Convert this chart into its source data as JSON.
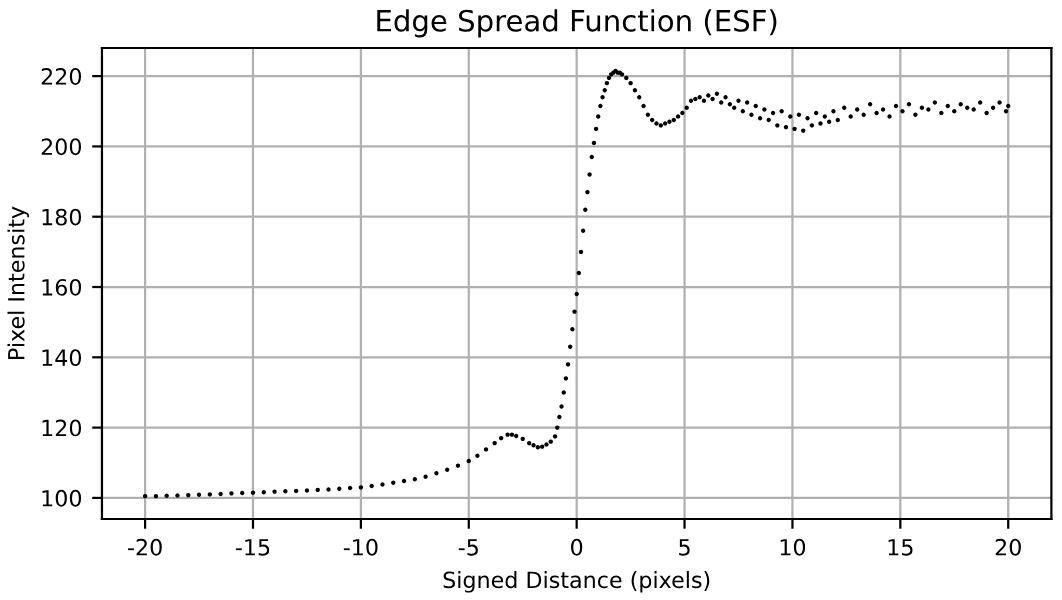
{
  "chart_data": {
    "type": "scatter",
    "title": "Edge Spread Function (ESF)",
    "xlabel": "Signed Distance (pixels)",
    "ylabel": "Pixel Intensity",
    "xlim": [
      -22,
      22
    ],
    "ylim": [
      94,
      228
    ],
    "xticks": [
      -20,
      -15,
      -10,
      -5,
      0,
      5,
      10,
      15,
      20
    ],
    "yticks": [
      100,
      120,
      140,
      160,
      180,
      200,
      220
    ],
    "grid": true,
    "marker": "circle",
    "series": [
      {
        "color": "#000000",
        "x": [
          -20,
          -19.5,
          -19,
          -18.5,
          -18,
          -17.5,
          -17,
          -16.5,
          -16,
          -15.5,
          -15,
          -14.5,
          -14,
          -13.5,
          -13,
          -12.5,
          -12,
          -11.5,
          -11,
          -10.5,
          -10,
          -9.5,
          -9,
          -8.5,
          -8,
          -7.5,
          -7,
          -6.5,
          -6,
          -5.5,
          -5,
          -4.6,
          -4.2,
          -3.8,
          -3.5,
          -3.2,
          -3.0,
          -2.8,
          -2.5,
          -2.2,
          -2.0,
          -1.8,
          -1.6,
          -1.4,
          -1.2,
          -1.0,
          -0.9,
          -0.8,
          -0.7,
          -0.6,
          -0.5,
          -0.4,
          -0.3,
          -0.2,
          -0.1,
          0.0,
          0.1,
          0.2,
          0.3,
          0.4,
          0.5,
          0.6,
          0.7,
          0.8,
          0.9,
          1.0,
          1.1,
          1.2,
          1.3,
          1.4,
          1.5,
          1.6,
          1.7,
          1.8,
          1.9,
          2.0,
          2.1,
          2.3,
          2.5,
          2.7,
          2.9,
          3.1,
          3.3,
          3.5,
          3.7,
          3.9,
          4.1,
          4.3,
          4.5,
          4.7,
          4.9,
          5.1,
          5.3,
          5.5,
          5.7,
          5.9,
          6.1,
          6.3,
          6.5,
          6.7,
          6.9,
          7.1,
          7.3,
          7.5,
          7.7,
          7.9,
          8.1,
          8.3,
          8.5,
          8.7,
          8.9,
          9.1,
          9.3,
          9.5,
          9.7,
          9.9,
          10.1,
          10.3,
          10.5,
          10.7,
          10.9,
          11.1,
          11.3,
          11.5,
          11.7,
          11.9,
          12.1,
          12.4,
          12.7,
          13.0,
          13.3,
          13.6,
          13.9,
          14.2,
          14.5,
          14.8,
          15.1,
          15.4,
          15.7,
          16.0,
          16.3,
          16.6,
          16.9,
          17.2,
          17.5,
          17.8,
          18.1,
          18.4,
          18.7,
          19.0,
          19.3,
          19.6,
          19.9,
          20.0
        ],
        "values": [
          100.5,
          100.5,
          100.6,
          100.7,
          100.8,
          100.9,
          101.0,
          101.1,
          101.3,
          101.4,
          101.5,
          101.6,
          101.8,
          101.9,
          102.0,
          102.1,
          102.3,
          102.4,
          102.6,
          102.8,
          103.0,
          103.4,
          103.8,
          104.3,
          104.8,
          105.3,
          106.0,
          107.0,
          108.0,
          109.2,
          110.5,
          112.0,
          113.8,
          115.6,
          117.0,
          118.0,
          118.0,
          117.6,
          116.8,
          115.6,
          115.0,
          114.4,
          114.6,
          115.2,
          116.0,
          117.5,
          120.0,
          123.0,
          126.0,
          130.0,
          134.0,
          138.0,
          143.0,
          148.0,
          153.0,
          158.0,
          164.0,
          170.0,
          176.0,
          182.0,
          187.0,
          192.0,
          197.0,
          201.0,
          205.0,
          208.5,
          211.5,
          214.0,
          216.0,
          218.0,
          219.5,
          220.5,
          221.0,
          221.5,
          221.0,
          221.0,
          220.5,
          219.5,
          218.0,
          216.0,
          214.0,
          211.5,
          209.0,
          207.5,
          206.5,
          206.0,
          206.5,
          207.0,
          207.5,
          208.5,
          209.5,
          211.0,
          213.0,
          213.5,
          214.0,
          213.0,
          214.5,
          213.5,
          215.0,
          212.5,
          214.0,
          212.0,
          211.0,
          213.0,
          210.0,
          212.5,
          209.0,
          211.5,
          208.0,
          210.5,
          207.5,
          209.5,
          206.0,
          210.0,
          205.5,
          208.5,
          205.0,
          209.0,
          204.5,
          208.0,
          206.0,
          209.5,
          206.5,
          208.5,
          207.0,
          210.0,
          207.5,
          211.0,
          208.5,
          210.5,
          209.0,
          212.0,
          209.5,
          210.5,
          208.5,
          211.5,
          210.0,
          212.0,
          209.0,
          211.0,
          210.5,
          212.5,
          209.5,
          211.5,
          210.0,
          212.0,
          211.0,
          210.5,
          212.5,
          209.5,
          211.0,
          212.5,
          210.0,
          211.5
        ]
      }
    ]
  }
}
